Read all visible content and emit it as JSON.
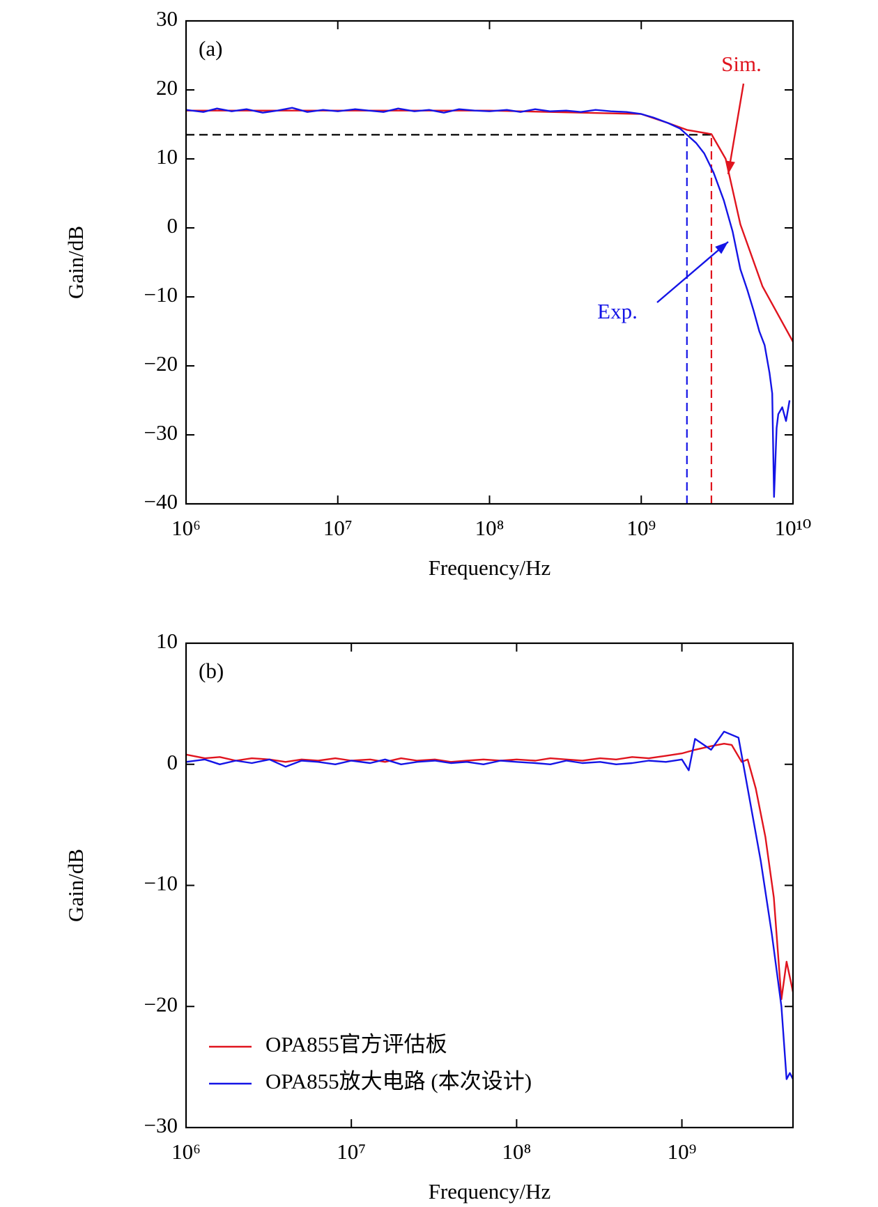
{
  "chart_data": [
    {
      "type": "line",
      "panel_label": "(a)",
      "xlabel": "Frequency/Hz",
      "ylabel": "Gain/dB",
      "xscale": "log",
      "legend": false,
      "xlim": [
        1000000.0,
        10000000000.0
      ],
      "ylim": [
        -40,
        30
      ],
      "xticks": [
        {
          "value": 1000000.0,
          "label": "10⁶"
        },
        {
          "value": 10000000.0,
          "label": "10⁷"
        },
        {
          "value": 100000000.0,
          "label": "10⁸"
        },
        {
          "value": 1000000000.0,
          "label": "10⁹"
        },
        {
          "value": 10000000000.0,
          "label": "10¹⁰"
        }
      ],
      "yticks": [
        {
          "value": -40,
          "label": "−40"
        },
        {
          "value": -30,
          "label": "−30"
        },
        {
          "value": -20,
          "label": "−20"
        },
        {
          "value": -10,
          "label": "−10"
        },
        0,
        10,
        20,
        30
      ],
      "hlines": [
        {
          "y": 13.5,
          "xmax": 2900000000.0,
          "color": "#000000"
        }
      ],
      "vlines": [
        {
          "x": 2000000000.0,
          "ymax": 13.5,
          "color": "#1414e6"
        },
        {
          "x": 2900000000.0,
          "ymax": 13.6,
          "color": "#e0141e"
        }
      ],
      "series": [
        {
          "name": "Sim.",
          "color": "#e0141e",
          "x": [
            1000000.0,
            100000000.0,
            1000000000.0,
            1500000000.0,
            2000000000.0,
            2900000000.0,
            3600000000.0,
            4500000000.0,
            6300000000.0,
            10000000000.0
          ],
          "values": [
            17,
            17,
            16.5,
            15.2,
            14.2,
            13.6,
            10,
            0.5,
            -8.5,
            -16.5
          ]
        },
        {
          "name": "Exp.",
          "color": "#1414e6",
          "x": [
            1000000.0,
            1300000.0,
            1600000.0,
            2000000.0,
            2500000.0,
            3200000.0,
            4000000.0,
            5000000.0,
            6300000.0,
            8000000.0,
            10000000.0,
            13000000.0,
            16000000.0,
            20000000.0,
            25000000.0,
            32000000.0,
            40000000.0,
            50000000.0,
            63000000.0,
            80000000.0,
            100000000.0,
            130000000.0,
            160000000.0,
            200000000.0,
            250000000.0,
            320000000.0,
            400000000.0,
            500000000.0,
            630000000.0,
            800000000.0,
            1000000000.0,
            1200000000.0,
            1500000000.0,
            1800000000.0,
            2000000000.0,
            2300000000.0,
            2600000000.0,
            3000000000.0,
            3500000000.0,
            4000000000.0,
            4500000000.0,
            5000000000.0,
            5500000000.0,
            6000000000.0,
            6500000000.0,
            7000000000.0,
            7300000000.0,
            7500000000.0,
            7800000000.0,
            8000000000.0,
            8500000000.0,
            9000000000.0,
            9500000000.0
          ],
          "values": [
            17.1,
            16.8,
            17.3,
            16.9,
            17.2,
            16.7,
            17.0,
            17.4,
            16.8,
            17.1,
            16.9,
            17.2,
            17.0,
            16.8,
            17.3,
            16.9,
            17.1,
            16.7,
            17.2,
            17.0,
            16.9,
            17.1,
            16.8,
            17.2,
            16.9,
            17.0,
            16.8,
            17.1,
            16.9,
            16.8,
            16.5,
            16.0,
            15.2,
            14.4,
            13.5,
            12.3,
            10.8,
            8.0,
            4.0,
            -0.5,
            -6,
            -9,
            -12,
            -15,
            -17,
            -21,
            -24,
            -39,
            -29,
            -27,
            -26,
            -28,
            -25
          ]
        }
      ]
    },
    {
      "type": "line",
      "panel_label": "(b)",
      "xlabel": "Frequency/Hz",
      "ylabel": "Gain/dB",
      "xscale": "log",
      "legend": "lower left",
      "xlim": [
        1000000.0,
        4700000000.0
      ],
      "ylim": [
        -30,
        10
      ],
      "xticks": [
        {
          "value": 1000000.0,
          "label": "10⁶"
        },
        {
          "value": 10000000.0,
          "label": "10⁷"
        },
        {
          "value": 100000000.0,
          "label": "10⁸"
        },
        {
          "value": 1000000000.0,
          "label": "10⁹"
        }
      ],
      "yticks": [
        {
          "value": -30,
          "label": "−30"
        },
        {
          "value": -20,
          "label": "−20"
        },
        {
          "value": -10,
          "label": "−10"
        },
        0,
        10
      ],
      "series": [
        {
          "name": "OPA855官方评估板",
          "color": "#e0141e",
          "x": [
            1000000.0,
            1300000.0,
            1600000.0,
            2000000.0,
            2500000.0,
            3200000.0,
            4000000.0,
            5000000.0,
            6300000.0,
            8000000.0,
            10000000.0,
            13000000.0,
            16000000.0,
            20000000.0,
            25000000.0,
            32000000.0,
            40000000.0,
            50000000.0,
            63000000.0,
            80000000.0,
            100000000.0,
            130000000.0,
            160000000.0,
            200000000.0,
            250000000.0,
            320000000.0,
            400000000.0,
            500000000.0,
            630000000.0,
            800000000.0,
            1000000000.0,
            1200000000.0,
            1500000000.0,
            1800000000.0,
            2000000000.0,
            2300000000.0,
            2500000000.0,
            2800000000.0,
            3200000000.0,
            3600000000.0,
            4000000000.0,
            4300000000.0,
            4700000000.0
          ],
          "values": [
            0.8,
            0.5,
            0.6,
            0.3,
            0.5,
            0.4,
            0.2,
            0.4,
            0.3,
            0.5,
            0.3,
            0.4,
            0.2,
            0.5,
            0.3,
            0.4,
            0.2,
            0.3,
            0.4,
            0.3,
            0.4,
            0.3,
            0.5,
            0.4,
            0.3,
            0.5,
            0.4,
            0.6,
            0.5,
            0.7,
            0.9,
            1.2,
            1.5,
            1.7,
            1.6,
            0.2,
            0.4,
            -2,
            -6,
            -11,
            -19.4,
            -16.3,
            -18.8
          ]
        },
        {
          "name": "OPA855放大电路 (本次设计)",
          "color": "#1414e6",
          "x": [
            1000000.0,
            1300000.0,
            1600000.0,
            2000000.0,
            2500000.0,
            3200000.0,
            4000000.0,
            5000000.0,
            6300000.0,
            8000000.0,
            10000000.0,
            13000000.0,
            16000000.0,
            20000000.0,
            25000000.0,
            32000000.0,
            40000000.0,
            50000000.0,
            63000000.0,
            80000000.0,
            100000000.0,
            130000000.0,
            160000000.0,
            200000000.0,
            250000000.0,
            320000000.0,
            400000000.0,
            500000000.0,
            630000000.0,
            800000000.0,
            1000000000.0,
            1100000000.0,
            1200000000.0,
            1500000000.0,
            1800000000.0,
            2200000000.0,
            2500000000.0,
            3000000000.0,
            3500000000.0,
            4000000000.0,
            4300000000.0,
            4500000000.0,
            4700000000.0
          ],
          "values": [
            0.2,
            0.4,
            0.0,
            0.3,
            0.1,
            0.4,
            -0.2,
            0.3,
            0.2,
            0.0,
            0.3,
            0.1,
            0.4,
            0.0,
            0.2,
            0.3,
            0.1,
            0.2,
            0.0,
            0.3,
            0.2,
            0.1,
            0.0,
            0.3,
            0.1,
            0.2,
            0.0,
            0.1,
            0.3,
            0.2,
            0.4,
            -0.5,
            2.1,
            1.2,
            2.7,
            2.2,
            -2,
            -8,
            -14,
            -20,
            -26,
            -25.5,
            -26
          ]
        }
      ]
    }
  ]
}
